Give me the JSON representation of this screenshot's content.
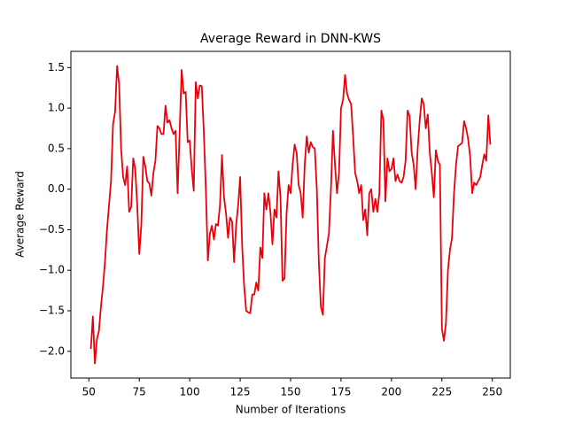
{
  "chart_data": {
    "type": "line",
    "title": "Average Reward in DNN-KWS",
    "x_label": "Number of Iterations",
    "y_label": "Average Reward",
    "color": "#e8000b",
    "x": [
      51,
      52,
      53,
      54,
      55,
      56,
      57,
      58,
      59,
      60,
      61,
      62,
      63,
      64,
      65,
      66,
      67,
      68,
      69,
      70,
      71,
      72,
      73,
      74,
      75,
      76,
      77,
      78,
      79,
      80,
      81,
      82,
      83,
      84,
      85,
      86,
      87,
      88,
      89,
      90,
      91,
      92,
      93,
      94,
      95,
      96,
      97,
      98,
      99,
      100,
      101,
      102,
      103,
      104,
      105,
      106,
      107,
      108,
      109,
      110,
      111,
      112,
      113,
      114,
      115,
      116,
      117,
      118,
      119,
      120,
      121,
      122,
      123,
      124,
      125,
      126,
      127,
      128,
      129,
      130,
      131,
      132,
      133,
      134,
      135,
      136,
      137,
      138,
      139,
      140,
      141,
      142,
      143,
      144,
      145,
      146,
      147,
      148,
      149,
      150,
      151,
      152,
      153,
      154,
      155,
      156,
      157,
      158,
      159,
      160,
      161,
      162,
      163,
      164,
      165,
      166,
      167,
      168,
      169,
      170,
      171,
      172,
      173,
      174,
      175,
      176,
      177,
      178,
      179,
      180,
      181,
      182,
      183,
      184,
      185,
      186,
      187,
      188,
      189,
      190,
      191,
      192,
      193,
      194,
      195,
      196,
      197,
      198,
      199,
      200,
      201,
      202,
      203,
      204,
      205,
      206,
      207,
      208,
      209,
      210,
      211,
      212,
      213,
      214,
      215,
      216,
      217,
      218,
      219,
      220,
      221,
      222,
      223,
      224,
      225,
      226,
      227,
      228,
      229,
      230,
      231,
      232,
      233,
      234,
      235,
      236,
      237,
      238,
      239,
      240,
      241,
      242,
      243,
      244,
      245,
      246,
      247,
      248,
      249
    ],
    "values": [
      -1.97,
      -1.57,
      -2.15,
      -1.85,
      -1.75,
      -1.45,
      -1.2,
      -0.9,
      -0.5,
      -0.2,
      0.1,
      0.8,
      0.95,
      1.52,
      1.3,
      0.5,
      0.15,
      0.05,
      0.28,
      -0.28,
      -0.22,
      0.38,
      0.25,
      -0.2,
      -0.8,
      -0.45,
      0.4,
      0.28,
      0.1,
      0.07,
      -0.08,
      0.2,
      0.35,
      0.78,
      0.75,
      0.68,
      0.68,
      1.03,
      0.82,
      0.85,
      0.75,
      0.68,
      0.72,
      -0.05,
      0.7,
      1.47,
      1.18,
      1.2,
      0.58,
      0.6,
      0.25,
      -0.02,
      1.32,
      1.12,
      1.28,
      1.27,
      0.7,
      0.0,
      -0.88,
      -0.55,
      -0.45,
      -0.62,
      -0.43,
      -0.45,
      -0.2,
      0.42,
      -0.1,
      -0.3,
      -0.6,
      -0.35,
      -0.4,
      -0.9,
      -0.45,
      -0.2,
      0.15,
      -0.7,
      -1.2,
      -1.5,
      -1.52,
      -1.53,
      -1.3,
      -1.3,
      -1.15,
      -1.25,
      -0.72,
      -0.85,
      -0.05,
      -0.25,
      -0.05,
      -0.28,
      -0.68,
      -0.25,
      -0.35,
      0.22,
      -0.1,
      -1.13,
      -1.1,
      -0.3,
      0.05,
      -0.05,
      0.3,
      0.55,
      0.45,
      0.05,
      -0.05,
      -0.35,
      0.3,
      0.65,
      0.45,
      0.58,
      0.52,
      0.5,
      0.0,
      -0.9,
      -1.45,
      -1.55,
      -0.85,
      -0.7,
      -0.55,
      0.0,
      0.72,
      0.3,
      -0.05,
      0.2,
      1.0,
      1.1,
      1.41,
      1.18,
      1.1,
      1.05,
      0.65,
      0.2,
      0.1,
      -0.05,
      0.05,
      -0.38,
      -0.25,
      -0.57,
      -0.05,
      0.0,
      -0.28,
      -0.12,
      -0.28,
      -0.05,
      0.97,
      0.85,
      -0.15,
      0.38,
      0.22,
      0.25,
      0.38,
      0.1,
      0.18,
      0.1,
      0.08,
      0.15,
      0.35,
      0.97,
      0.9,
      0.45,
      0.3,
      0.0,
      0.5,
      0.85,
      1.12,
      1.05,
      0.75,
      0.92,
      0.45,
      0.2,
      -0.1,
      0.48,
      0.35,
      0.3,
      -1.72,
      -1.87,
      -1.65,
      -1.0,
      -0.75,
      -0.6,
      -0.05,
      0.3,
      0.53,
      0.55,
      0.57,
      0.84,
      0.75,
      0.62,
      0.4,
      -0.05,
      0.08,
      0.05,
      0.1,
      0.15,
      0.3,
      0.43,
      0.35,
      0.91,
      0.55
    ],
    "xlim": [
      41.1,
      258.9
    ],
    "xticks": [
      50,
      75,
      100,
      125,
      150,
      175,
      200,
      225,
      250
    ],
    "ylim": [
      -2.33,
      1.7
    ],
    "yticks": [
      {
        "value": -2.0,
        "label": "−2.0"
      },
      {
        "value": -1.5,
        "label": "−1.5"
      },
      {
        "value": -1.0,
        "label": "−1.0"
      },
      {
        "value": -0.5,
        "label": "−0.5"
      },
      {
        "value": 0,
        "label": "0.0"
      },
      0.5,
      {
        "value": 1.0,
        "label": "1.0"
      },
      1.5
    ]
  }
}
